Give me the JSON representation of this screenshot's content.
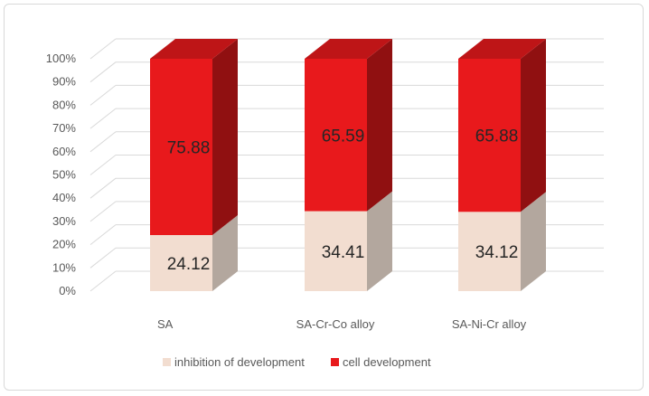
{
  "chart_data": {
    "type": "bar",
    "stacked": true,
    "percent": true,
    "three_d": true,
    "categories": [
      "SA",
      "SA-Cr-Co alloy",
      "SA-Ni-Cr alloy"
    ],
    "series": [
      {
        "name": "inhibition of development",
        "values": [
          24.12,
          34.41,
          34.12
        ],
        "color": "#f2ddd0"
      },
      {
        "name": "cell development",
        "values": [
          75.88,
          65.59,
          65.88
        ],
        "color": "#e8191c"
      }
    ],
    "data_labels": [
      [
        "24.12",
        "34.41",
        "34.12"
      ],
      [
        "75.88",
        "65.59",
        "65.88"
      ]
    ],
    "y_ticks": [
      "0%",
      "10%",
      "20%",
      "30%",
      "40%",
      "50%",
      "60%",
      "70%",
      "80%",
      "90%",
      "100%"
    ],
    "ylim": [
      0,
      100
    ],
    "grid": true,
    "legend_position": "bottom"
  }
}
